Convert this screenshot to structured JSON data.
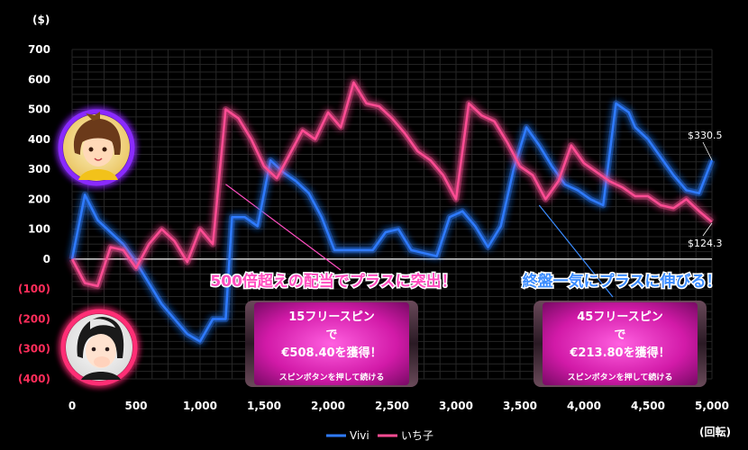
{
  "chart_data": {
    "type": "line",
    "ylabel": "($)",
    "xlabel": "(回転)",
    "xlim": [
      0,
      5000
    ],
    "ylim": [
      -400,
      700
    ],
    "yticks": [
      {
        "value": 700,
        "label": "700"
      },
      {
        "value": 600,
        "label": "600"
      },
      {
        "value": 500,
        "label": "500"
      },
      {
        "value": 400,
        "label": "400"
      },
      {
        "value": 300,
        "label": "300"
      },
      {
        "value": 200,
        "label": "200"
      },
      {
        "value": 100,
        "label": "100"
      },
      {
        "value": 0,
        "label": "0"
      },
      {
        "value": -100,
        "label": "(100)"
      },
      {
        "value": -200,
        "label": "(200)"
      },
      {
        "value": -300,
        "label": "(300)"
      },
      {
        "value": -400,
        "label": "(400)"
      }
    ],
    "xticks": [
      {
        "value": 0,
        "label": "0"
      },
      {
        "value": 500,
        "label": "500"
      },
      {
        "value": 1000,
        "label": "1,000"
      },
      {
        "value": 1500,
        "label": "1,500"
      },
      {
        "value": 2000,
        "label": "2,000"
      },
      {
        "value": 2500,
        "label": "2,500"
      },
      {
        "value": 3000,
        "label": "3,000"
      },
      {
        "value": 3500,
        "label": "3,500"
      },
      {
        "value": 4000,
        "label": "4,000"
      },
      {
        "value": 4500,
        "label": "4,500"
      },
      {
        "value": 5000,
        "label": "5,000"
      }
    ],
    "grid": true,
    "legend_position": "bottom",
    "series": [
      {
        "name": "Vivi",
        "color": "#2f7bff",
        "x": [
          0,
          100,
          200,
          300,
          400,
          500,
          600,
          700,
          800,
          900,
          1000,
          1100,
          1200,
          1250,
          1350,
          1450,
          1550,
          1650,
          1750,
          1850,
          1950,
          2050,
          2150,
          2250,
          2350,
          2450,
          2550,
          2650,
          2750,
          2850,
          2950,
          3050,
          3150,
          3250,
          3350,
          3450,
          3550,
          3650,
          3750,
          3850,
          3950,
          4050,
          4150,
          4250,
          4350,
          4400,
          4500,
          4600,
          4700,
          4800,
          4900,
          5000
        ],
        "y": [
          0,
          215,
          130,
          90,
          50,
          -10,
          -80,
          -150,
          -200,
          -250,
          -275,
          -200,
          -200,
          140,
          140,
          110,
          330,
          290,
          260,
          220,
          140,
          30,
          30,
          30,
          30,
          90,
          100,
          30,
          20,
          10,
          140,
          160,
          110,
          40,
          110,
          300,
          440,
          380,
          310,
          250,
          230,
          200,
          180,
          520,
          490,
          440,
          400,
          340,
          280,
          230,
          220,
          330
        ]
      },
      {
        "name": "いち子",
        "color": "#ff4d94",
        "x": [
          0,
          100,
          200,
          300,
          400,
          500,
          600,
          700,
          800,
          900,
          1000,
          1100,
          1200,
          1300,
          1400,
          1500,
          1600,
          1700,
          1800,
          1900,
          2000,
          2100,
          2200,
          2300,
          2400,
          2500,
          2600,
          2700,
          2800,
          2900,
          3000,
          3100,
          3200,
          3300,
          3400,
          3500,
          3600,
          3700,
          3800,
          3900,
          4000,
          4100,
          4200,
          4300,
          4400,
          4500,
          4600,
          4700,
          4800,
          4900,
          5000
        ],
        "y": [
          0,
          -80,
          -90,
          40,
          30,
          -30,
          50,
          100,
          60,
          -10,
          100,
          50,
          500,
          470,
          400,
          310,
          270,
          350,
          430,
          400,
          490,
          440,
          590,
          520,
          510,
          470,
          420,
          360,
          330,
          280,
          200,
          520,
          480,
          460,
          390,
          310,
          280,
          200,
          260,
          380,
          320,
          290,
          260,
          240,
          210,
          210,
          180,
          170,
          200,
          160,
          124
        ]
      }
    ],
    "end_labels": [
      {
        "series": "Vivi",
        "text": "$330.5"
      },
      {
        "series": "いち子",
        "text": "$124.3"
      }
    ],
    "annotations": [
      {
        "text": "500倍超えの配当でプラスに突出！",
        "color": "#ff4dc0",
        "at": [
          1200,
          250
        ]
      },
      {
        "text": "終盤一気にプラスに伸びる！",
        "color": "#3b8cff",
        "at": [
          3650,
          180
        ]
      }
    ],
    "boxes": [
      {
        "lines": [
          "15フリースピン",
          "で",
          "€508.40を獲得！"
        ],
        "sub": "スピンボタンを押して続ける"
      },
      {
        "lines": [
          "45フリースピン",
          "で",
          "€213.80を獲得！"
        ],
        "sub": "スピンボタンを押して続ける"
      }
    ],
    "avatars": [
      {
        "name": "vivi-avatar",
        "ring": "#8a2bff"
      },
      {
        "name": "ichiko-avatar",
        "ring": "#ff2d75"
      }
    ]
  }
}
